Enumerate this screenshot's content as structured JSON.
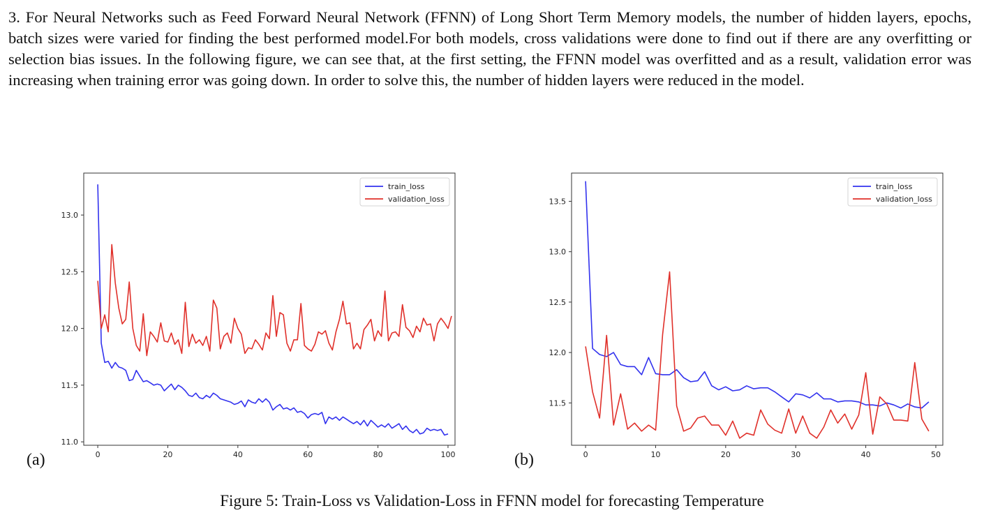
{
  "paragraph": "3. For Neural Networks such as Feed Forward Neural Network (FFNN) of Long Short Term Memory models, the number of hidden layers, epochs, batch sizes were varied for finding the best performed model.For both models, cross validations were done to find out if there are any overfitting or selection bias issues. In the following figure, we can see that, at the first setting, the FFNN model was overfitted and as a result, validation error was increasing when training error was going down. In order to solve this, the number of hidden layers were reduced in the model.",
  "caption": "Figure 5: Train-Loss vs Validation-Loss in FFNN model for forecasting Temperature",
  "chart_data": [
    {
      "type": "line",
      "panel_label": "(a)",
      "xlim": [
        -4,
        102
      ],
      "ylim": [
        10.97,
        13.37
      ],
      "xticks": [
        0,
        20,
        40,
        60,
        80,
        100
      ],
      "yticks": [
        11.0,
        11.5,
        12.0,
        12.5,
        13.0
      ],
      "ytick_labels": [
        "11.0",
        "11.5",
        "12.0",
        "12.5",
        "13.0"
      ],
      "legend_position": "top-right",
      "grid": false,
      "series": [
        {
          "name": "train_loss",
          "color": "#3232ee",
          "values": [
            13.27,
            11.87,
            11.7,
            11.71,
            11.65,
            11.7,
            11.66,
            11.65,
            11.63,
            11.54,
            11.55,
            11.63,
            11.58,
            11.53,
            11.54,
            11.52,
            11.5,
            11.51,
            11.5,
            11.45,
            11.48,
            11.51,
            11.46,
            11.5,
            11.48,
            11.45,
            11.41,
            11.4,
            11.43,
            11.39,
            11.38,
            11.41,
            11.39,
            11.43,
            11.41,
            11.38,
            11.37,
            11.36,
            11.35,
            11.33,
            11.34,
            11.36,
            11.31,
            11.37,
            11.35,
            11.34,
            11.38,
            11.35,
            11.38,
            11.35,
            11.28,
            11.31,
            11.33,
            11.29,
            11.3,
            11.28,
            11.3,
            11.26,
            11.27,
            11.25,
            11.21,
            11.24,
            11.25,
            11.24,
            11.26,
            11.16,
            11.22,
            11.2,
            11.22,
            11.19,
            11.22,
            11.2,
            11.18,
            11.16,
            11.18,
            11.15,
            11.19,
            11.14,
            11.19,
            11.16,
            11.13,
            11.15,
            11.13,
            11.16,
            11.12,
            11.14,
            11.16,
            11.11,
            11.14,
            11.1,
            11.08,
            11.11,
            11.07,
            11.08,
            11.12,
            11.1,
            11.11,
            11.1,
            11.11,
            11.06,
            11.07
          ]
        },
        {
          "name": "validation_loss",
          "color": "#e0302a",
          "values": [
            12.42,
            12.0,
            12.12,
            11.97,
            12.74,
            12.4,
            12.18,
            12.04,
            12.08,
            12.41,
            12.0,
            11.85,
            11.8,
            12.13,
            11.76,
            11.97,
            11.93,
            11.88,
            12.05,
            11.89,
            11.88,
            11.96,
            11.86,
            11.9,
            11.78,
            12.23,
            11.84,
            11.95,
            11.87,
            11.9,
            11.85,
            11.93,
            11.8,
            12.25,
            12.18,
            11.82,
            11.93,
            11.96,
            11.87,
            12.09,
            12.0,
            11.95,
            11.78,
            11.83,
            11.82,
            11.9,
            11.86,
            11.81,
            11.96,
            11.91,
            12.29,
            11.93,
            12.14,
            12.12,
            11.87,
            11.8,
            11.9,
            11.9,
            12.22,
            11.85,
            11.82,
            11.8,
            11.86,
            11.97,
            11.95,
            11.98,
            11.87,
            11.81,
            11.97,
            12.08,
            12.24,
            12.04,
            12.05,
            11.82,
            11.87,
            11.82,
            11.99,
            12.03,
            12.08,
            11.89,
            11.98,
            11.93,
            12.33,
            11.89,
            11.96,
            11.97,
            11.93,
            12.21,
            12.01,
            11.98,
            11.92,
            12.02,
            11.97,
            12.09,
            12.03,
            12.04,
            11.89,
            12.04,
            12.09,
            12.05,
            12.0,
            12.11
          ]
        }
      ]
    },
    {
      "type": "line",
      "panel_label": "(b)",
      "xlim": [
        -2,
        51
      ],
      "ylim": [
        11.08,
        13.78
      ],
      "xticks": [
        0,
        10,
        20,
        30,
        40,
        50
      ],
      "yticks": [
        11.5,
        12.0,
        12.5,
        13.0,
        13.5
      ],
      "ytick_labels": [
        "11.5",
        "12.0",
        "12.5",
        "13.0",
        "13.5"
      ],
      "legend_position": "top-right",
      "grid": false,
      "series": [
        {
          "name": "train_loss",
          "color": "#3232ee",
          "values": [
            13.7,
            12.04,
            11.98,
            11.96,
            12.0,
            11.88,
            11.86,
            11.86,
            11.78,
            11.95,
            11.79,
            11.78,
            11.78,
            11.83,
            11.75,
            11.71,
            11.72,
            11.81,
            11.67,
            11.63,
            11.66,
            11.62,
            11.63,
            11.67,
            11.64,
            11.65,
            11.65,
            11.61,
            11.56,
            11.51,
            11.59,
            11.58,
            11.55,
            11.6,
            11.54,
            11.54,
            11.51,
            11.52,
            11.52,
            11.51,
            11.48,
            11.48,
            11.47,
            11.5,
            11.48,
            11.45,
            11.49,
            11.46,
            11.45,
            11.51
          ]
        },
        {
          "name": "validation_loss",
          "color": "#e0302a",
          "values": [
            12.06,
            11.61,
            11.35,
            12.17,
            11.28,
            11.59,
            11.24,
            11.3,
            11.22,
            11.28,
            11.23,
            12.18,
            12.8,
            11.47,
            11.22,
            11.25,
            11.35,
            11.37,
            11.28,
            11.28,
            11.18,
            11.32,
            11.15,
            11.2,
            11.18,
            11.43,
            11.29,
            11.23,
            11.2,
            11.44,
            11.2,
            11.37,
            11.2,
            11.15,
            11.26,
            11.43,
            11.3,
            11.39,
            11.24,
            11.38,
            11.8,
            11.19,
            11.56,
            11.49,
            11.33,
            11.33,
            11.32,
            11.9,
            11.34,
            11.22
          ]
        }
      ]
    }
  ]
}
